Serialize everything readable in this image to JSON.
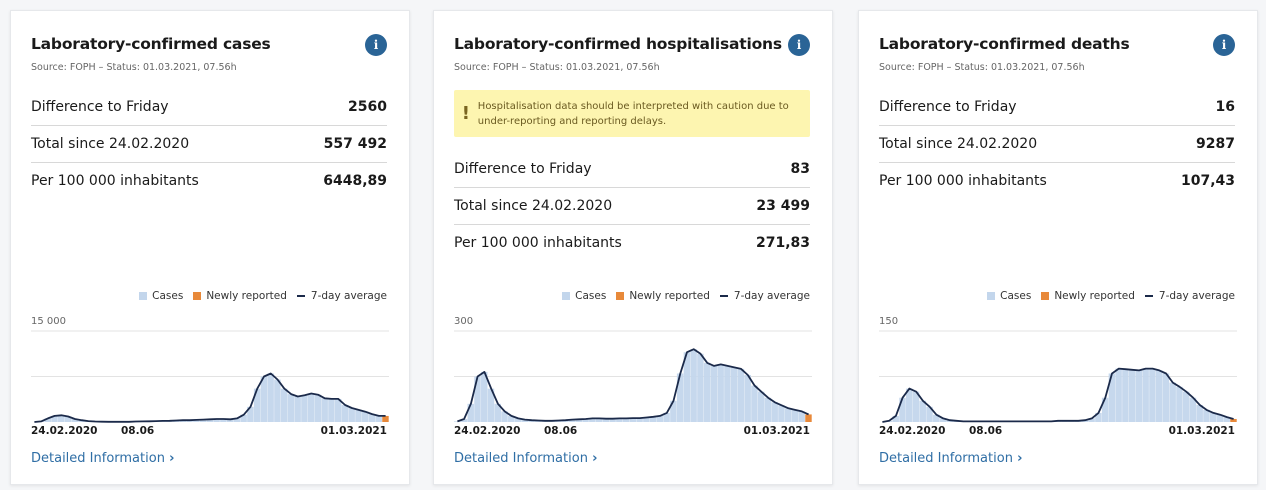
{
  "colors": {
    "bars": "#c3d6ec",
    "newly": "#e8893a",
    "line": "#1b2a4a",
    "accent": "#2a6496"
  },
  "legend": {
    "cases": "Cases",
    "newly": "Newly reported",
    "avg": "7-day average"
  },
  "ticks": [
    "24.02.2020",
    "08.06",
    "01.03.2021"
  ],
  "more_label": "Detailed Information",
  "cards": [
    {
      "title": "Laboratory-confirmed cases",
      "source": "Source: FOPH – Status: 01.03.2021, 07.56h",
      "rows": [
        {
          "label": "Difference to Friday",
          "value": "2560"
        },
        {
          "label": "Total since 24.02.2020",
          "value": "557 492"
        },
        {
          "label": "Per 100 000 inhabitants",
          "value": "6448,89"
        }
      ],
      "ymax_label": "15 000"
    },
    {
      "title": "Laboratory-confirmed hospitalisations",
      "source": "Source: FOPH – Status: 01.03.2021, 07.56h",
      "warning": "Hospitalisation data should be interpreted with caution due to under-reporting and reporting delays.",
      "rows": [
        {
          "label": "Difference to Friday",
          "value": "83"
        },
        {
          "label": "Total since 24.02.2020",
          "value": "23 499"
        },
        {
          "label": "Per 100 000 inhabitants",
          "value": "271,83"
        }
      ],
      "ymax_label": "300"
    },
    {
      "title": "Laboratory-confirmed deaths",
      "source": "Source: FOPH – Status: 01.03.2021, 07.56h",
      "rows": [
        {
          "label": "Difference to Friday",
          "value": "16"
        },
        {
          "label": "Total since 24.02.2020",
          "value": "9287"
        },
        {
          "label": "Per 100 000 inhabitants",
          "value": "107,43"
        }
      ],
      "ymax_label": "150"
    }
  ],
  "chart_data": [
    {
      "type": "bar",
      "title": "Laboratory-confirmed cases",
      "ylim": [
        0,
        15000
      ],
      "x_start": "24.02.2020",
      "x_end": "01.03.2021",
      "interval": "weekly",
      "series": [
        {
          "name": "7-day average",
          "values": [
            0,
            100,
            600,
            1000,
            1100,
            900,
            500,
            300,
            150,
            80,
            50,
            40,
            30,
            30,
            40,
            80,
            100,
            120,
            150,
            180,
            200,
            250,
            300,
            300,
            350,
            400,
            450,
            500,
            500,
            450,
            600,
            1200,
            2500,
            5500,
            7500,
            8000,
            7000,
            5500,
            4600,
            4200,
            4400,
            4700,
            4500,
            3900,
            3800,
            3800,
            2800,
            2300,
            2000,
            1700,
            1300,
            1000,
            1000
          ]
        }
      ]
    },
    {
      "type": "bar",
      "title": "Laboratory-confirmed hospitalisations",
      "ylim": [
        0,
        300
      ],
      "x_start": "24.02.2020",
      "x_end": "01.03.2021",
      "interval": "weekly",
      "series": [
        {
          "name": "7-day average",
          "values": [
            2,
            10,
            60,
            150,
            165,
            110,
            60,
            35,
            20,
            12,
            8,
            6,
            5,
            4,
            4,
            5,
            6,
            8,
            9,
            10,
            12,
            12,
            11,
            11,
            12,
            12,
            13,
            13,
            15,
            17,
            20,
            30,
            70,
            160,
            230,
            240,
            225,
            195,
            185,
            190,
            185,
            180,
            175,
            155,
            120,
            100,
            80,
            65,
            55,
            45,
            40,
            35,
            25
          ]
        }
      ]
    },
    {
      "type": "bar",
      "title": "Laboratory-confirmed deaths",
      "ylim": [
        0,
        150
      ],
      "x_start": "24.02.2020",
      "x_end": "01.03.2021",
      "interval": "weekly",
      "series": [
        {
          "name": "7-day average",
          "values": [
            0,
            2,
            10,
            40,
            55,
            50,
            35,
            25,
            12,
            6,
            3,
            2,
            1,
            1,
            1,
            1,
            1,
            1,
            1,
            1,
            1,
            1,
            1,
            1,
            1,
            1,
            2,
            2,
            2,
            2,
            3,
            6,
            15,
            40,
            80,
            88,
            87,
            86,
            85,
            88,
            88,
            85,
            80,
            65,
            58,
            50,
            40,
            28,
            20,
            15,
            12,
            8,
            5
          ]
        }
      ]
    }
  ]
}
